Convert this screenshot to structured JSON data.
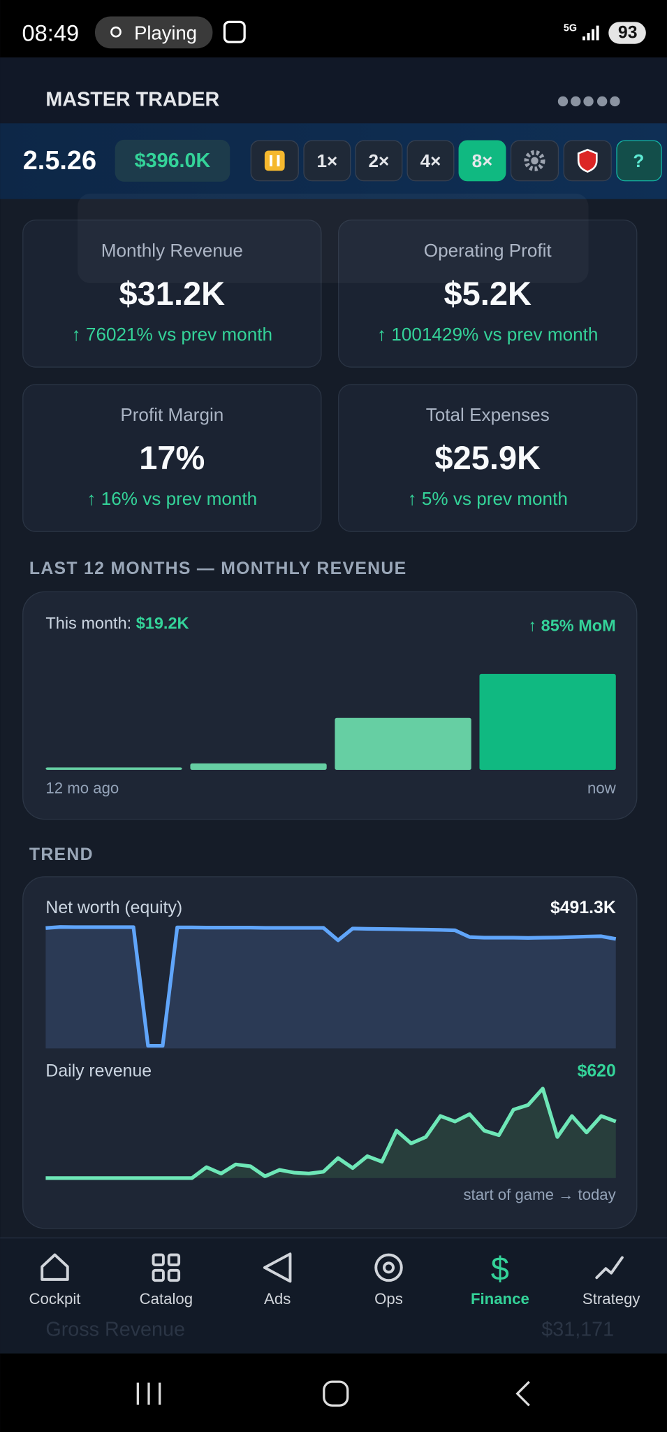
{
  "status_bar": {
    "time": "08:49",
    "activity": "Playing",
    "network": "5G",
    "battery": "93"
  },
  "header": {
    "title": "MASTER TRADER"
  },
  "toolbar": {
    "date": "2.5.26",
    "cash": "$396.0K",
    "speeds": [
      "1×",
      "2×",
      "4×",
      "8×"
    ],
    "help": "?"
  },
  "kpis": [
    {
      "label": "Monthly Revenue",
      "value": "$31.2K",
      "change": "↑ 76021% vs prev month"
    },
    {
      "label": "Operating Profit",
      "value": "$5.2K",
      "change": "↑ 1001429% vs prev month"
    },
    {
      "label": "Profit Margin",
      "value": "17%",
      "change": "↑ 16% vs prev month"
    },
    {
      "label": "Total Expenses",
      "value": "$25.9K",
      "change": "↑ 5% vs prev month"
    }
  ],
  "revenue_section": {
    "title": "LAST 12 MONTHS — MONTHLY REVENUE",
    "this_month_label": "This month:",
    "this_month_value": "$19.2K",
    "mom": "↑ 85% MoM",
    "start_label": "12 mo ago",
    "end_label": "now",
    "chart": {
      "type": "bar",
      "values": [
        500,
        1300,
        10400,
        19200
      ],
      "color": "#66cfa3",
      "highlight_color": "#10b981"
    }
  },
  "trend_section": {
    "title": "TREND",
    "net_worth": {
      "type": "area",
      "label": "Net worth (equity)",
      "latest": "$491.3K",
      "color": "#60a5fa",
      "fill": "#2b3a55",
      "values": [
        540,
        545,
        544,
        544,
        544,
        544,
        544,
        12,
        12,
        543,
        543,
        542,
        542,
        542,
        542,
        541,
        541,
        541,
        541,
        541,
        485,
        538,
        537,
        536,
        535,
        534,
        533,
        532,
        530,
        500,
        497,
        497,
        497,
        496,
        497,
        498,
        500,
        502,
        503,
        491.3
      ]
    },
    "daily_revenue": {
      "type": "area",
      "label": "Daily revenue",
      "latest": "$620",
      "color": "#6ee7b7",
      "fill": "#283e3c",
      "values": [
        0,
        0,
        0,
        0,
        0,
        0,
        0,
        0,
        0,
        0,
        0,
        120,
        50,
        150,
        130,
        20,
        90,
        60,
        50,
        70,
        220,
        110,
        240,
        180,
        520,
        380,
        450,
        680,
        620,
        700,
        520,
        470,
        750,
        800,
        980,
        450,
        680,
        500,
        680,
        620
      ]
    },
    "footer": "start of game → today"
  },
  "pl_summary": {
    "row_label": "Gross Revenue",
    "row_value": "$31,171"
  },
  "bottom_nav": {
    "items": [
      "Cockpit",
      "Catalog",
      "Ads",
      "Ops",
      "Finance",
      "Strategy"
    ],
    "active": 4
  }
}
